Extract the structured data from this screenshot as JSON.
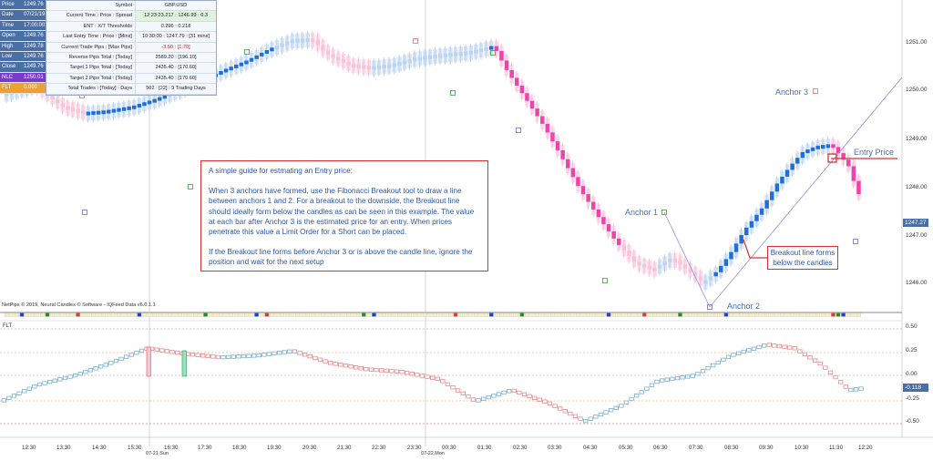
{
  "ohlc_panel": [
    {
      "k": "Price",
      "v": "1249.76"
    },
    {
      "k": "Date",
      "v": "07/21/19"
    },
    {
      "k": "Time",
      "v": "17:00:00"
    },
    {
      "k": "Open",
      "v": "1249.76"
    },
    {
      "k": "High",
      "v": "1249.78"
    },
    {
      "k": "Low",
      "v": "1249.76"
    },
    {
      "k": "Close",
      "v": "1249.76"
    },
    {
      "k": "NLC",
      "v": "1250.01"
    },
    {
      "k": "FLT",
      "v": "0.000"
    }
  ],
  "info_table": [
    {
      "label": "Symbol",
      "value": "GBP.USD"
    },
    {
      "label": "Current Time : Price : Spread",
      "value": "12:23:23.217 : 1246.99 : 0.3"
    },
    {
      "label": "ENT : X/T Thresholds",
      "value": "0.296 : 0.218"
    },
    {
      "label": "Last Entry Time : Price : [Mins]",
      "value": "10:30:00 : 1247.79 : [31 mins]"
    },
    {
      "label": "Current Trade Pips : [Max Pips]",
      "value": "-3.50 : [1.70]"
    },
    {
      "label": "Reverse Pips Total : [Today]",
      "value": "2589.20 : [196.10]"
    },
    {
      "label": "Target 1 Pips Total : [Today]",
      "value": "2435.40 : [170.60]"
    },
    {
      "label": "Target 2 Pips Total : [Today]",
      "value": "2435.40 : [170.60]"
    },
    {
      "label": "Total Trades : [Today] : Days",
      "value": "502 : [22] : 9 Trading Days"
    }
  ],
  "guide": {
    "p1": "A simple guide for estmating an Entry price:",
    "p2": "When 3 anchors have formed, use the Fibonacci Breakout tool to draw a line between anchors 1 and 2.  For a breakout to the downside, the Breakout line should ideally form below the candles as can be seen in this example.  The value at each bar after Anchor 3 is the estimated price for an entry.  When prices penetrate this value a Limit Order for a Short can be placed.",
    "p3": "If the Breakout line forms before Anchor 3 or is above the candle line, ignore the position and wait for the next setup"
  },
  "labels": {
    "anchor1": "Anchor 1",
    "anchor2": "Anchor 2",
    "anchor3": "Anchor 3",
    "entry_price": "Entry Price",
    "breakout": "Breakout line forms below the candles"
  },
  "footer": "NetPips © 2019, Neural Candles © Software - IQFeed Data v6.0.1.1",
  "indicator_label": "FLT",
  "price_axis": [
    "1251.00",
    "1250.00",
    "1249.00",
    "1248.00",
    "1247.00",
    "1246.00"
  ],
  "current_price_tag": "1247.27",
  "ind_axis": [
    "0.50",
    "0.25",
    "0.00",
    "-0.25",
    "-0.50"
  ],
  "ind_current_tag": "-0.118",
  "time_axis": [
    "12:30",
    "13:30",
    "14:30",
    "15:30",
    "16:30",
    "17:30",
    "18:30",
    "19:30",
    "20:30",
    "21:30",
    "22:30",
    "23:30",
    "00:30",
    "01:30",
    "02:30",
    "03:30",
    "04:30",
    "05:30",
    "06:30",
    "07:30",
    "08:30",
    "09:30",
    "10:30",
    "11:30",
    "12:20"
  ],
  "date_labels": [
    "07-21 Sun",
    "07-22 Mon"
  ],
  "colors": {
    "bull": "#1e6fd9",
    "bear": "#ee44aa",
    "bull_faint": "#bcd4f0",
    "bear_faint": "#f8c4d8",
    "line": "#9a8ee0"
  }
}
